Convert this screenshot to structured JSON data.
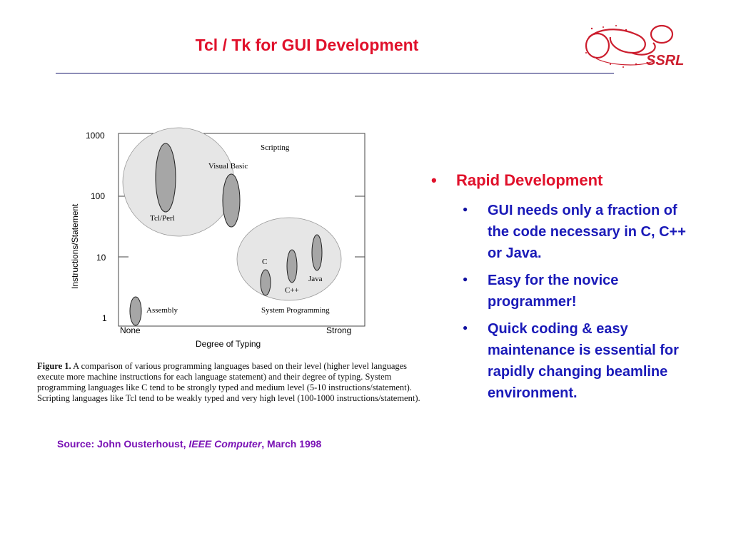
{
  "slide": {
    "title": "Tcl / Tk for GUI Development",
    "logo_text": "SSRL"
  },
  "figure": {
    "y_axis_label": "Instructions/Statement",
    "x_axis_label": "Degree of Typing",
    "y_ticks": [
      "1000",
      "100",
      "10",
      "1"
    ],
    "x_ticks": [
      "None",
      "Strong"
    ],
    "region_labels": {
      "scripting": "Scripting",
      "system": "System Programming"
    },
    "languages": {
      "tcl": "Tcl/Perl",
      "vb": "Visual Basic",
      "c": "C",
      "cpp": "C++",
      "java": "Java",
      "asm": "Assembly"
    }
  },
  "caption": {
    "bold": "Figure 1.",
    "text": " A comparison of various programming languages based on their level (higher level languages execute more machine instructions for each language statement) and their degree of typing. System programming languages like C tend to be strongly typed and medium level (5-10 instructions/statement). Scripting languages like Tcl tend to be weakly typed and very high level (100-1000 instructions/statement)."
  },
  "source": {
    "prefix": "Source:  John Ousterhoust, ",
    "journal": "IEEE Computer",
    "suffix": ", March 1998"
  },
  "bullets": {
    "main_symbol": "•",
    "main": "Rapid Development",
    "sub_symbol": "●",
    "items": [
      "GUI needs only a fraction of the code necessary in C, C++ or Java.",
      "Easy for the novice programmer!",
      "Quick coding & easy maintenance is essential for rapidly changing beamline environment."
    ]
  },
  "colors": {
    "title": "#e0112b",
    "rule": "#1a1a6e",
    "bullet_main": "#e0112b",
    "bullet_sub": "#1a1ab8",
    "source": "#7a12b5",
    "region_fill": "#e6e6e6",
    "lang_fill": "#a6a6a6"
  }
}
